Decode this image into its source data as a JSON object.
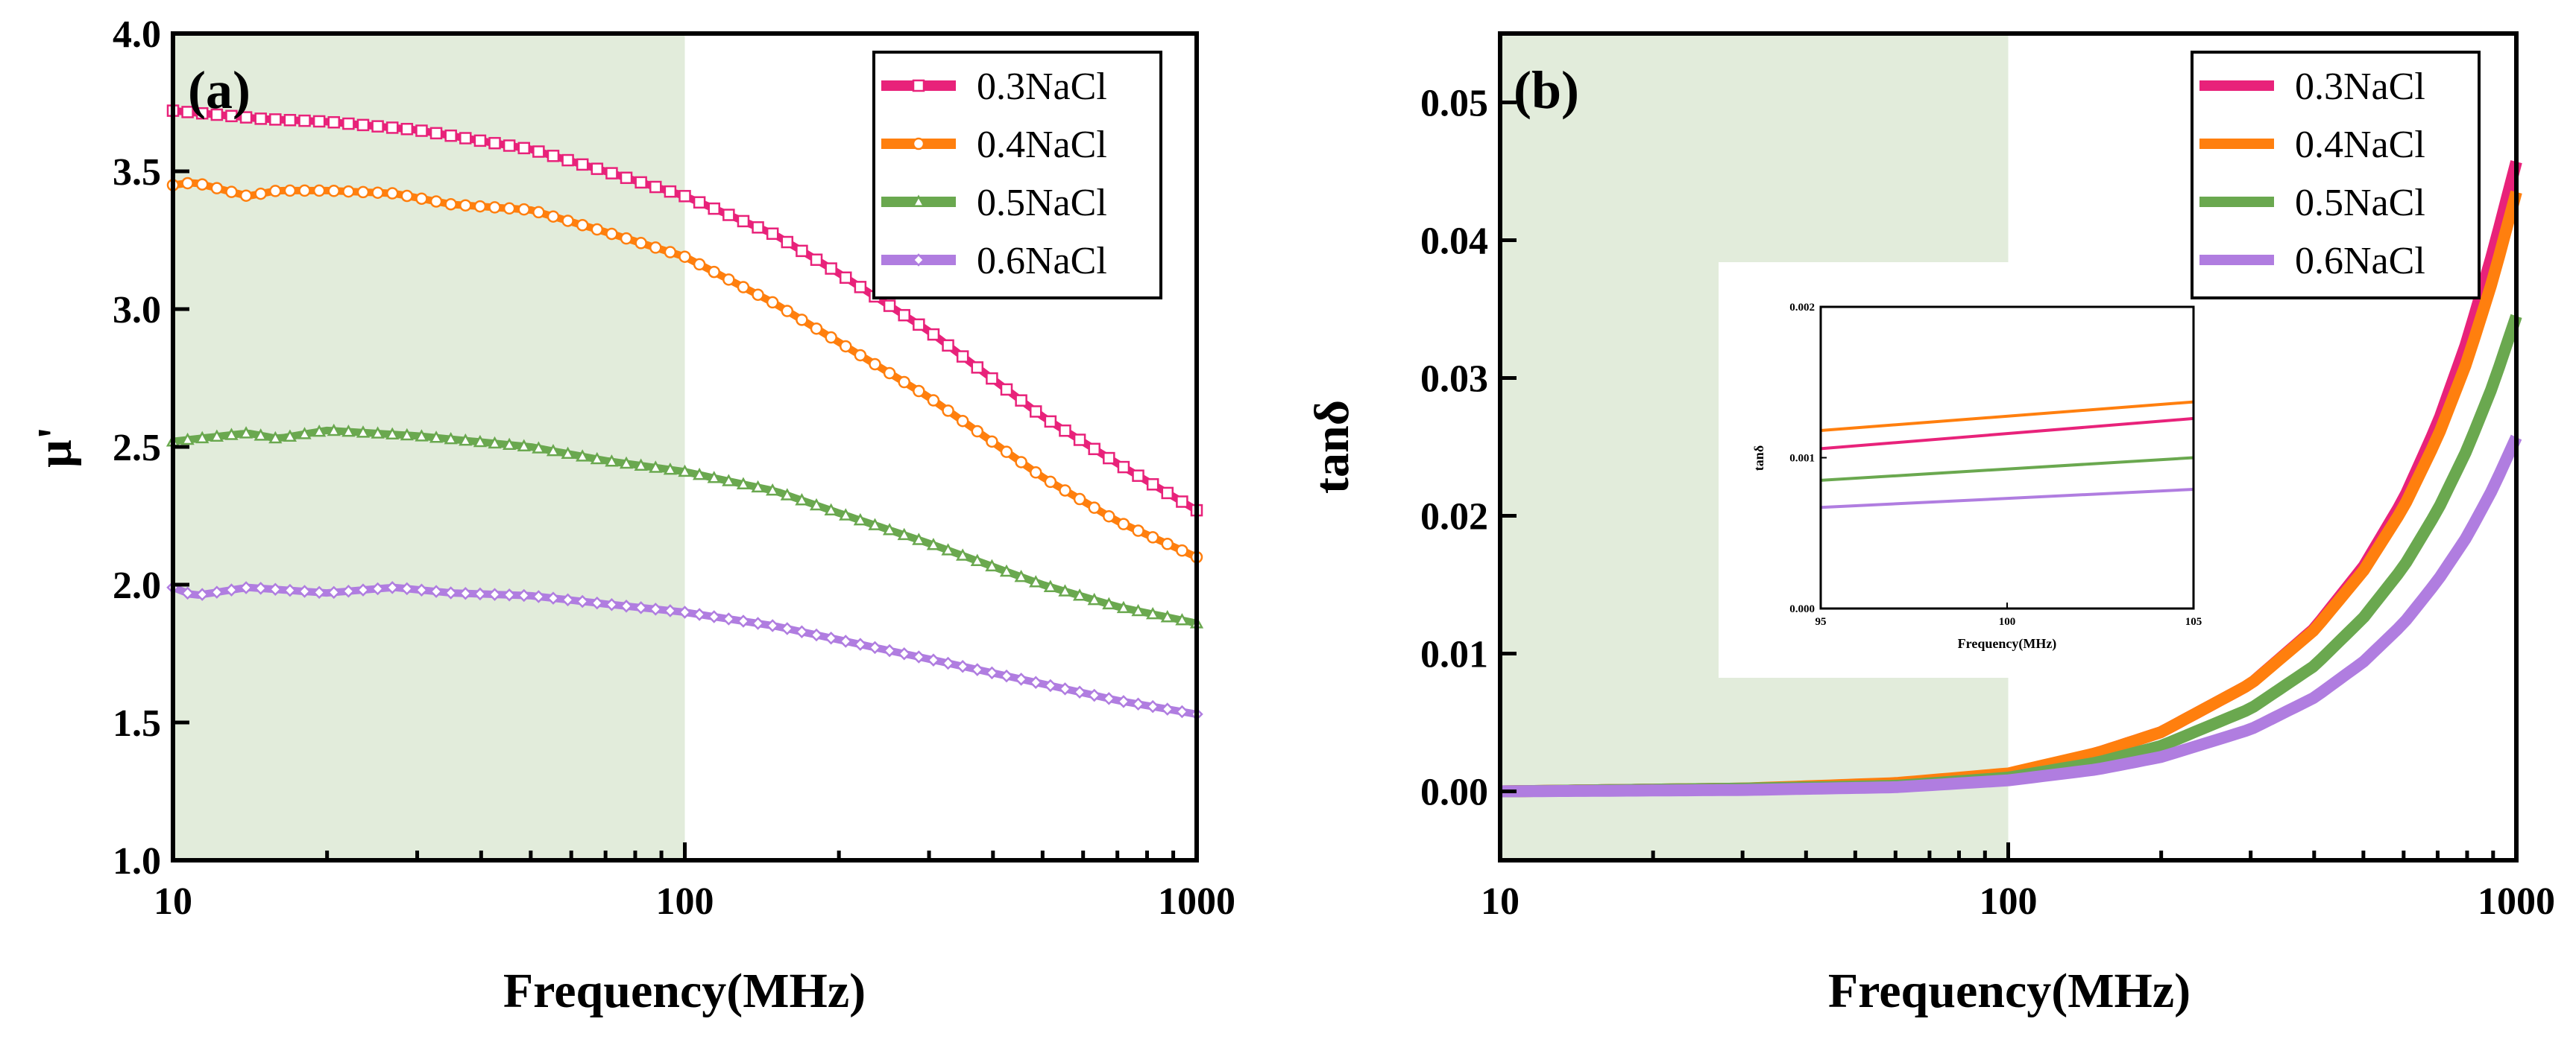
{
  "colors": {
    "series": [
      "#e8227a",
      "#ff7f0e",
      "#6aa84f",
      "#b07de0"
    ],
    "shade": "#e2ecdb"
  },
  "chart_data": [
    {
      "panel": "(a)",
      "type": "line",
      "xscale": "log",
      "xlabel": "Frequency(MHz)",
      "ylabel": "μ'",
      "xlim": [
        10,
        1000
      ],
      "ylim": [
        1.0,
        4.0
      ],
      "xticks": [
        "10",
        "100",
        "1000"
      ],
      "yticks": [
        "1.0",
        "1.5",
        "2.0",
        "2.5",
        "3.0",
        "3.5",
        "4.0"
      ],
      "shaded_region_x": [
        10,
        100
      ],
      "legend_position": "top-right",
      "markers": [
        "square",
        "circle",
        "triangle",
        "diamond"
      ],
      "series": [
        {
          "name": "0.3NaCl",
          "x": [
            10,
            15,
            20,
            30,
            50,
            70,
            100,
            150,
            200,
            300,
            500,
            700,
            1000
          ],
          "y": [
            3.72,
            3.69,
            3.68,
            3.65,
            3.58,
            3.5,
            3.41,
            3.27,
            3.13,
            2.92,
            2.61,
            2.44,
            2.27
          ]
        },
        {
          "name": "0.4NaCl",
          "x": [
            10,
            11,
            14,
            16,
            20,
            27,
            35,
            50,
            70,
            100,
            150,
            200,
            300,
            500,
            700,
            1000
          ],
          "y": [
            3.45,
            3.46,
            3.41,
            3.43,
            3.43,
            3.42,
            3.38,
            3.36,
            3.28,
            3.19,
            3.02,
            2.88,
            2.68,
            2.39,
            2.23,
            2.1
          ]
        },
        {
          "name": "0.5NaCl",
          "x": [
            10,
            14,
            16,
            20,
            30,
            50,
            70,
            100,
            150,
            200,
            300,
            500,
            700,
            1000
          ],
          "y": [
            2.52,
            2.55,
            2.53,
            2.56,
            2.54,
            2.5,
            2.45,
            2.41,
            2.34,
            2.26,
            2.15,
            2.0,
            1.92,
            1.86
          ]
        },
        {
          "name": "0.6NaCl",
          "x": [
            10,
            11,
            14,
            20,
            27,
            35,
            50,
            70,
            100,
            150,
            200,
            300,
            500,
            700,
            1000
          ],
          "y": [
            1.99,
            1.96,
            1.99,
            1.97,
            1.99,
            1.97,
            1.96,
            1.93,
            1.9,
            1.85,
            1.8,
            1.73,
            1.64,
            1.58,
            1.53
          ]
        }
      ]
    },
    {
      "panel": "(b)",
      "type": "line",
      "xscale": "log",
      "xlabel": "Frequency(MHz)",
      "ylabel": "tanδ",
      "xlim": [
        10,
        1000
      ],
      "ylim": [
        -0.005,
        0.055
      ],
      "xticks": [
        "10",
        "100",
        "1000"
      ],
      "yticks": [
        "0.00",
        "0.01",
        "0.02",
        "0.03",
        "0.04",
        "0.05"
      ],
      "shaded_region_x": [
        10,
        100
      ],
      "legend_position": "top-right",
      "series": [
        {
          "name": "0.3NaCl",
          "x": [
            10,
            30,
            60,
            100,
            150,
            200,
            300,
            400,
            500,
            600,
            700,
            800,
            900,
            1000
          ],
          "y": [
            0.0,
            0.0002,
            0.0005,
            0.0012,
            0.0028,
            0.0043,
            0.0078,
            0.0118,
            0.0163,
            0.0212,
            0.0267,
            0.0327,
            0.0392,
            0.0457
          ]
        },
        {
          "name": "0.4NaCl",
          "x": [
            10,
            30,
            60,
            100,
            150,
            200,
            300,
            400,
            500,
            600,
            700,
            800,
            900,
            1000
          ],
          "y": [
            0.0,
            0.0002,
            0.0006,
            0.0013,
            0.0028,
            0.0043,
            0.0078,
            0.0117,
            0.016,
            0.0206,
            0.0257,
            0.0312,
            0.0372,
            0.0435
          ]
        },
        {
          "name": "0.5NaCl",
          "x": [
            10,
            30,
            60,
            100,
            150,
            200,
            300,
            400,
            500,
            600,
            700,
            800,
            900,
            1000
          ],
          "y": [
            0.0,
            0.0002,
            0.0004,
            0.001,
            0.0021,
            0.0033,
            0.006,
            0.0091,
            0.0126,
            0.0163,
            0.0204,
            0.0248,
            0.0295,
            0.0345
          ]
        },
        {
          "name": "0.6NaCl",
          "x": [
            10,
            30,
            60,
            100,
            150,
            200,
            300,
            400,
            500,
            600,
            700,
            800,
            900,
            1000
          ],
          "y": [
            0.0,
            0.0001,
            0.0003,
            0.0008,
            0.0016,
            0.0025,
            0.0045,
            0.0068,
            0.0094,
            0.0122,
            0.0153,
            0.0185,
            0.022,
            0.0257
          ]
        }
      ],
      "inset": {
        "xlabel": "Frequency(MHz)",
        "ylabel": "tanδ",
        "xlim": [
          95,
          105
        ],
        "ylim": [
          0.0,
          0.002
        ],
        "xticks": [
          "95",
          "100",
          "105"
        ],
        "yticks": [
          "0.000",
          "0.001",
          "0.002"
        ],
        "series": [
          {
            "name": "0.3NaCl",
            "x": [
              95,
              105
            ],
            "y": [
              0.00106,
              0.00126
            ]
          },
          {
            "name": "0.4NaCl",
            "x": [
              95,
              105
            ],
            "y": [
              0.00118,
              0.00137
            ]
          },
          {
            "name": "0.5NaCl",
            "x": [
              95,
              105
            ],
            "y": [
              0.00085,
              0.001
            ]
          },
          {
            "name": "0.6NaCl",
            "x": [
              95,
              105
            ],
            "y": [
              0.00067,
              0.00079
            ]
          }
        ]
      }
    }
  ]
}
